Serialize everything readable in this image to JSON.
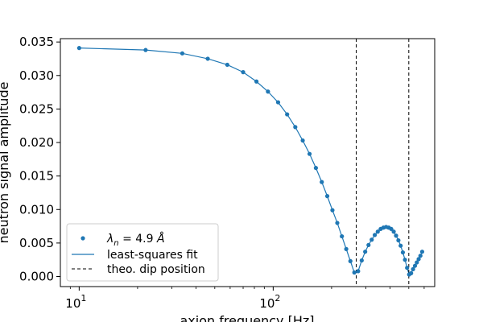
{
  "chart_data": {
    "type": "line",
    "xlabel": "axion frequency [Hz]",
    "ylabel": "neutron signal amplitude",
    "xscale": "log",
    "xlim": [
      8.0,
      680
    ],
    "ylim": [
      -0.0015,
      0.0355
    ],
    "x_ticks": [
      {
        "value": 10,
        "base": "10",
        "exp": "1"
      },
      {
        "value": 100,
        "base": "10",
        "exp": "2"
      }
    ],
    "y_ticks": [
      {
        "value": 0.0,
        "label": "0.000"
      },
      {
        "value": 0.005,
        "label": "0.005"
      },
      {
        "value": 0.01,
        "label": "0.010"
      },
      {
        "value": 0.015,
        "label": "0.015"
      },
      {
        "value": 0.02,
        "label": "0.020"
      },
      {
        "value": 0.025,
        "label": "0.025"
      },
      {
        "value": 0.03,
        "label": "0.030"
      },
      {
        "value": 0.035,
        "label": "0.035"
      }
    ],
    "grid": false,
    "legend_position": "lower-left",
    "series": [
      {
        "name": "λ_n = 4.9 Å",
        "kind": "scatter",
        "color": "#1f77b4",
        "x": [
          10,
          22,
          34,
          46,
          58,
          70,
          82,
          94,
          106,
          118,
          130,
          142,
          154,
          166,
          178,
          190,
          202,
          214,
          226,
          238,
          250,
          262,
          274,
          286,
          298,
          310,
          322,
          334,
          346,
          358,
          370,
          382,
          394,
          406,
          418,
          430,
          442,
          454,
          466,
          478,
          490,
          502,
          514,
          526,
          538,
          550,
          562,
          574,
          586
        ],
        "y": [
          0.0341,
          0.0338,
          0.0333,
          0.0325,
          0.0316,
          0.0305,
          0.0291,
          0.0276,
          0.026,
          0.0242,
          0.0223,
          0.0203,
          0.0183,
          0.0162,
          0.0141,
          0.012,
          0.0099,
          0.008,
          0.006,
          0.0041,
          0.0023,
          0.0006,
          0.0008,
          0.0024,
          0.0037,
          0.0047,
          0.0055,
          0.0062,
          0.0067,
          0.0071,
          0.0073,
          0.0074,
          0.0073,
          0.0071,
          0.0067,
          0.0061,
          0.0054,
          0.0046,
          0.0036,
          0.0025,
          0.0013,
          0.0003,
          0.0005,
          0.0011,
          0.0016,
          0.0021,
          0.0026,
          0.0031,
          0.0037
        ]
      },
      {
        "name": "least-squares fit",
        "kind": "line",
        "color": "#1f77b4"
      },
      {
        "name": "theo. dip position",
        "kind": "vline",
        "color": "#000000",
        "x": [
          268,
          500
        ]
      }
    ]
  }
}
